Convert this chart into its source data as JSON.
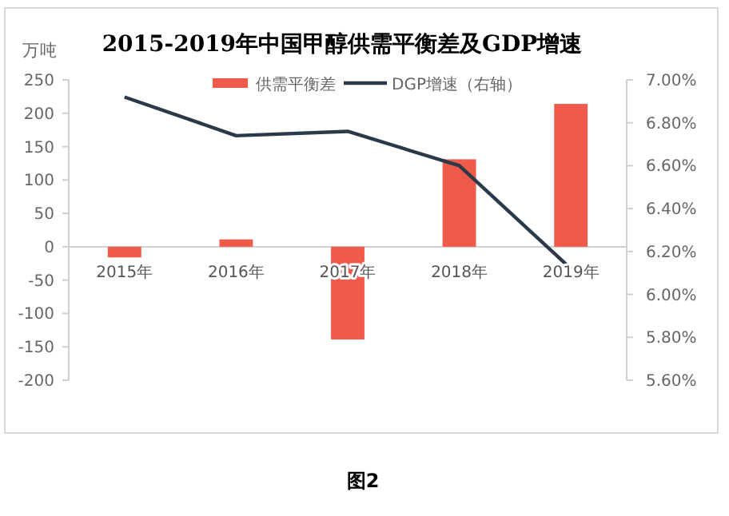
{
  "chart_data": {
    "type": "bar",
    "title": "2015-2019年中国甲醇供需平衡差及GDP增速",
    "ylabel": "万吨",
    "categories": [
      "2015年",
      "2016年",
      "2017年",
      "2018年",
      "2019年"
    ],
    "series": [
      {
        "name": "供需平衡差",
        "color": "#f05a4a",
        "values": [
          -16,
          11,
          -139,
          131,
          214
        ]
      },
      {
        "name": "DGP增速（右轴）",
        "type": "line",
        "axis": "y2",
        "color": "#2b3a48",
        "values": [
          6.92,
          6.74,
          6.76,
          6.6,
          6.12
        ]
      }
    ],
    "ylim": [
      -200,
      250
    ],
    "yticks": [
      -200,
      -150,
      -100,
      -50,
      0,
      50,
      100,
      150,
      200,
      250
    ],
    "y2lim": [
      5.6,
      7
    ],
    "y2ticks": [
      {
        "value": 5.6,
        "label": "5.60%"
      },
      {
        "value": 5.8,
        "label": "5.80%"
      },
      {
        "value": 6,
        "label": "6.00%"
      },
      {
        "value": 6.2,
        "label": "6.20%"
      },
      {
        "value": 6.4,
        "label": "6.40%"
      },
      {
        "value": 6.6,
        "label": "6.60%"
      },
      {
        "value": 6.8,
        "label": "6.80%"
      },
      {
        "value": 7,
        "label": "7.00%"
      }
    ],
    "legend": "top",
    "grid": false,
    "marker": "none",
    "line_style": "solid",
    "annotations": [
      "图2"
    ]
  }
}
